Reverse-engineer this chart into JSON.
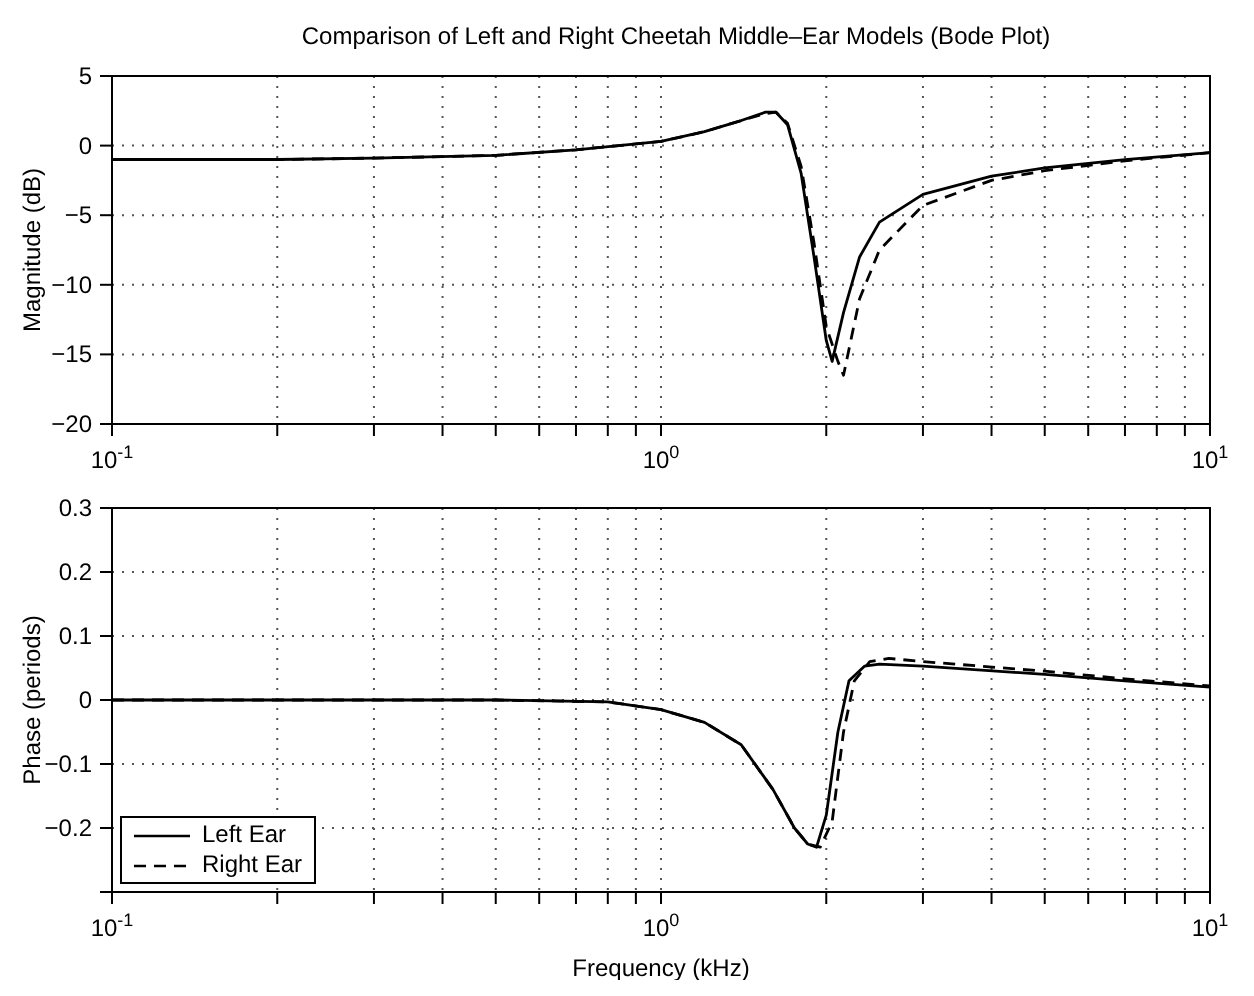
{
  "chart_data": [
    {
      "type": "line",
      "title": "Comparison of Left and Right Cheetah Middle–Ear Models (Bode Plot)",
      "ylabel": "Magnitude (dB)",
      "log": "x",
      "grid": true,
      "xlim": [
        0.1,
        10
      ],
      "xticks": [
        {
          "value": 0.1,
          "label": "10$^{-1}$"
        },
        {
          "value": 0.2,
          "label": null
        },
        {
          "value": 0.3,
          "label": null
        },
        {
          "value": 0.4,
          "label": null
        },
        {
          "value": 0.5,
          "label": null
        },
        {
          "value": 0.6,
          "label": null
        },
        {
          "value": 0.7,
          "label": null
        },
        {
          "value": 0.8,
          "label": null
        },
        {
          "value": 0.9,
          "label": null
        },
        {
          "value": 1,
          "label": "10$^{0}$"
        },
        {
          "value": 2,
          "label": null
        },
        {
          "value": 3,
          "label": null
        },
        {
          "value": 4,
          "label": null
        },
        {
          "value": 5,
          "label": null
        },
        {
          "value": 6,
          "label": null
        },
        {
          "value": 7,
          "label": null
        },
        {
          "value": 8,
          "label": null
        },
        {
          "value": 9,
          "label": null
        },
        {
          "value": 10,
          "label": "10$^{1}$"
        }
      ],
      "ylim": [
        -20,
        5
      ],
      "yticks": [
        -20,
        -15,
        -10,
        -5,
        0,
        5
      ],
      "series": [
        {
          "color": "#000000",
          "line_style": "solid",
          "x": [
            0.1,
            0.2,
            0.3,
            0.5,
            0.7,
            1.0,
            1.2,
            1.4,
            1.55,
            1.62,
            1.7,
            1.8,
            1.9,
            2.0,
            2.05,
            2.15,
            2.3,
            2.5,
            3,
            4,
            5,
            7,
            10
          ],
          "values": [
            -1,
            -1,
            -0.9,
            -0.7,
            -0.3,
            0.3,
            1.0,
            1.8,
            2.4,
            2.4,
            1.5,
            -2,
            -8,
            -14,
            -15.5,
            -12,
            -8,
            -5.5,
            -3.5,
            -2.2,
            -1.6,
            -1,
            -0.5
          ]
        },
        {
          "color": "#000000",
          "line_style": "dashed",
          "x": [
            0.1,
            0.2,
            0.3,
            0.5,
            0.7,
            1.0,
            1.2,
            1.4,
            1.55,
            1.62,
            1.7,
            1.8,
            1.9,
            2.0,
            2.1,
            2.15,
            2.3,
            2.5,
            3,
            4,
            5,
            7,
            10
          ],
          "values": [
            -1,
            -1,
            -0.9,
            -0.7,
            -0.3,
            0.3,
            1.0,
            1.8,
            2.3,
            2.4,
            1.6,
            -1.5,
            -7,
            -13,
            -15.5,
            -16.5,
            -11,
            -7.5,
            -4.3,
            -2.5,
            -1.8,
            -1.1,
            -0.5
          ]
        }
      ]
    },
    {
      "type": "line",
      "xlabel": "Frequency (kHz)",
      "ylabel": "Phase (periods)",
      "log": "x",
      "grid": true,
      "legend": "bottom left",
      "xlim": [
        0.1,
        10
      ],
      "xticks": [
        {
          "value": 0.1,
          "label": "10$^{-1}$"
        },
        {
          "value": 0.2,
          "label": null
        },
        {
          "value": 0.3,
          "label": null
        },
        {
          "value": 0.4,
          "label": null
        },
        {
          "value": 0.5,
          "label": null
        },
        {
          "value": 0.6,
          "label": null
        },
        {
          "value": 0.7,
          "label": null
        },
        {
          "value": 0.8,
          "label": null
        },
        {
          "value": 0.9,
          "label": null
        },
        {
          "value": 1,
          "label": "10$^{0}$"
        },
        {
          "value": 2,
          "label": null
        },
        {
          "value": 3,
          "label": null
        },
        {
          "value": 4,
          "label": null
        },
        {
          "value": 5,
          "label": null
        },
        {
          "value": 6,
          "label": null
        },
        {
          "value": 7,
          "label": null
        },
        {
          "value": 8,
          "label": null
        },
        {
          "value": 9,
          "label": null
        },
        {
          "value": 10,
          "label": "10$^{1}$"
        }
      ],
      "ylim": [
        -0.3,
        0.3
      ],
      "yticks": [
        {
          "value": -0.3,
          "label": null
        },
        -0.2,
        -0.1,
        0,
        0.1,
        0.2,
        0.3
      ],
      "series": [
        {
          "name": "Left Ear",
          "color": "#000000",
          "line_style": "solid",
          "x": [
            0.1,
            0.5,
            0.8,
            1.0,
            1.2,
            1.4,
            1.6,
            1.75,
            1.85,
            1.92,
            2.0,
            2.1,
            2.2,
            2.35,
            2.5,
            3,
            5,
            7,
            10
          ],
          "values": [
            0,
            0,
            -0.003,
            -0.015,
            -0.035,
            -0.07,
            -0.14,
            -0.2,
            -0.225,
            -0.23,
            -0.18,
            -0.05,
            0.03,
            0.053,
            0.056,
            0.053,
            0.04,
            0.03,
            0.02
          ]
        },
        {
          "name": "Right Ear",
          "color": "#000000",
          "line_style": "dashed",
          "x": [
            0.1,
            0.5,
            0.8,
            1.0,
            1.2,
            1.4,
            1.6,
            1.75,
            1.85,
            1.95,
            2.05,
            2.15,
            2.25,
            2.4,
            2.6,
            3,
            5,
            7,
            10
          ],
          "values": [
            0,
            0,
            -0.003,
            -0.015,
            -0.035,
            -0.07,
            -0.14,
            -0.2,
            -0.225,
            -0.23,
            -0.19,
            -0.05,
            0.03,
            0.06,
            0.065,
            0.06,
            0.045,
            0.033,
            0.022
          ]
        }
      ]
    }
  ]
}
